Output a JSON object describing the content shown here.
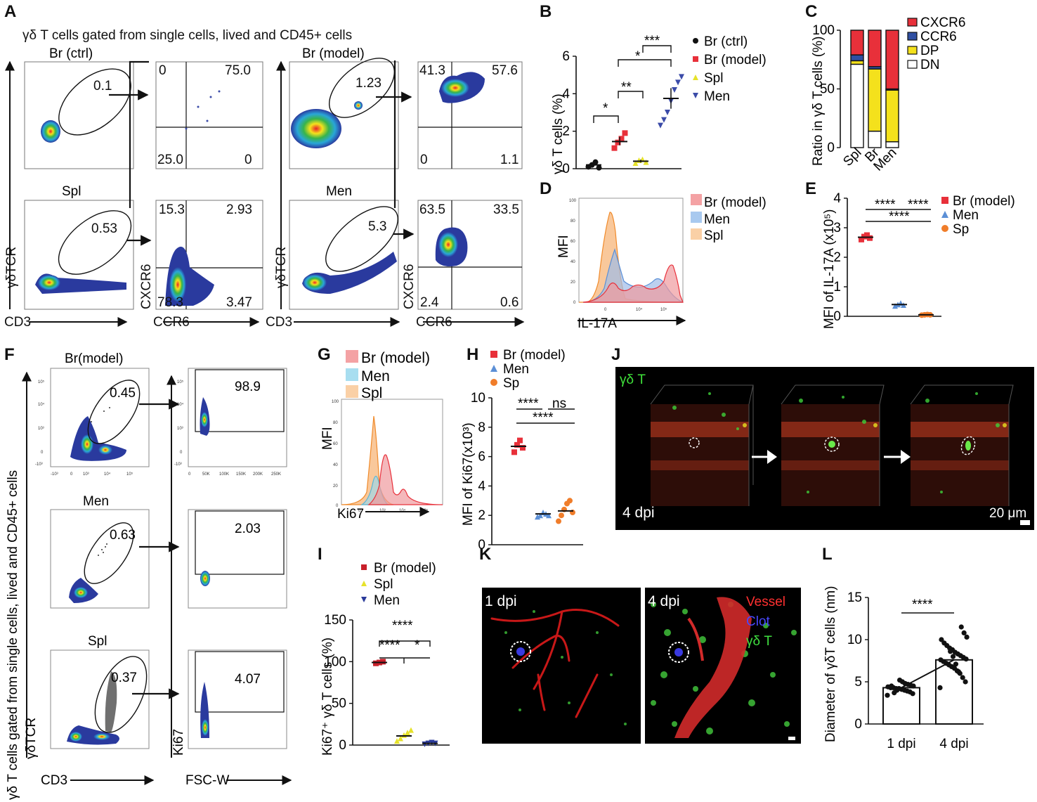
{
  "figure": {
    "panel_letters": [
      "A",
      "B",
      "C",
      "D",
      "E",
      "F",
      "G",
      "H",
      "I",
      "J",
      "K",
      "L"
    ],
    "colors": {
      "red": "#e8303a",
      "blue": "#3b4ba8",
      "yellow": "#e6e22a",
      "lightblue": "#5b8fd6",
      "orange": "#f07d2a",
      "black": "#111111"
    }
  },
  "panelA": {
    "title": "γδ T cells gated from single cells, lived and CD45+ cells",
    "plot_titles": [
      "Br (ctrl)",
      "Br (model)",
      "Spl",
      "Men"
    ],
    "gate_values": [
      "0.1",
      "1.23",
      "0.53",
      "5.3"
    ],
    "quadrants": [
      [
        "0",
        "75.0",
        "25.0",
        "0"
      ],
      [
        "41.3",
        "57.6",
        "0",
        "1.1"
      ],
      [
        "15.3",
        "2.93",
        "78.3",
        "3.47"
      ],
      [
        "63.5",
        "33.5",
        "2.4",
        "0.6"
      ]
    ],
    "ylabels": [
      "γδTCR",
      "CXCR6",
      "γδTCR",
      "CXCR6"
    ],
    "xlabels": [
      "CD3",
      "CCR6",
      "CD3",
      "CCR6"
    ]
  },
  "panelB": {
    "ylabel": "γδ T cells (%)",
    "sig": [
      "*",
      "**",
      "*",
      "***"
    ],
    "chart_data": {
      "type": "scatter",
      "ylim": [
        0,
        6
      ],
      "yticks": [
        "0",
        "2",
        "4",
        "6"
      ],
      "series": [
        {
          "name": "Br (ctrl)",
          "color": "#111111",
          "marker": "circle",
          "mean": 0.2,
          "values": [
            0.1,
            0.2,
            0.35,
            0.05
          ]
        },
        {
          "name": "Br (model)",
          "color": "#e8303a",
          "marker": "square",
          "mean": 1.45,
          "values": [
            1.1,
            1.4,
            1.6,
            1.9
          ]
        },
        {
          "name": "Spl",
          "color": "#e6e22a",
          "marker": "triangle",
          "mean": 0.4,
          "values": [
            0.3,
            0.45,
            0.5,
            0.35
          ]
        },
        {
          "name": "Men",
          "color": "#3b4ba8",
          "marker": "triangle-down",
          "mean": 3.75,
          "values": [
            2.3,
            2.6,
            3.0,
            3.6,
            4.2,
            4.6,
            4.9
          ]
        }
      ]
    }
  },
  "panelC": {
    "ylabel": "Ratio in γδ T cells (%)",
    "chart_data": {
      "type": "bar",
      "stacked": true,
      "categories": [
        "Spl",
        "Br",
        "Men"
      ],
      "ylim": [
        0,
        100
      ],
      "yticks": [
        "0",
        "50",
        "100"
      ],
      "series": [
        {
          "name": "DN",
          "color": "#ffffff",
          "values": [
            71,
            14,
            5
          ]
        },
        {
          "name": "DP",
          "color": "#f4e11c",
          "values": [
            3,
            53,
            44
          ]
        },
        {
          "name": "CCR6",
          "color": "#2f4fa2",
          "values": [
            5,
            2,
            1
          ]
        },
        {
          "name": "CXCR6",
          "color": "#e8303a",
          "values": [
            21,
            31,
            50
          ]
        }
      ]
    }
  },
  "panelD": {
    "ylabel": "MFI",
    "xlabel": "IL-17A",
    "yticks": [
      "0",
      "20",
      "40",
      "60",
      "80",
      "100"
    ],
    "xticks": [
      "0",
      "10⁴",
      "10⁵"
    ],
    "legend": [
      "Br (model)",
      "Men",
      "Spl"
    ]
  },
  "panelE": {
    "ylabel": "MFI of IL-17A (x10⁵)",
    "sig": [
      "****",
      "****",
      "****"
    ],
    "chart_data": {
      "type": "scatter",
      "ylim": [
        0,
        4
      ],
      "yticks": [
        "0",
        "1",
        "2",
        "3",
        "4"
      ],
      "series": [
        {
          "name": "Br (model)",
          "color": "#e8303a",
          "marker": "square",
          "mean": 2.68,
          "values": [
            2.6,
            2.7,
            2.75,
            2.65
          ]
        },
        {
          "name": "Men",
          "color": "#5b8fd6",
          "marker": "triangle",
          "mean": 0.4,
          "values": [
            0.35,
            0.4,
            0.45,
            0.38
          ]
        },
        {
          "name": "Sp",
          "color": "#f07d2a",
          "marker": "circle",
          "mean": 0.05,
          "values": [
            0.04,
            0.05,
            0.06,
            0.05
          ]
        }
      ]
    }
  },
  "panelF": {
    "ylabel_outer": "γδ T cells gated from single cells, lived and CD45+ cells",
    "plot_titles": [
      "Br(model)",
      "Men",
      "Spl"
    ],
    "gate_values": [
      "0.45",
      "0.63",
      "0.37"
    ],
    "ki67_values": [
      "98.9",
      "2.03",
      "4.07"
    ],
    "ylabels": [
      "γδTCR",
      "Ki67"
    ],
    "xlabels": [
      "CD3",
      "FSC-W"
    ],
    "xticks_left": [
      "-10³",
      "0",
      "10³",
      "10⁴",
      "10⁵"
    ],
    "yticks_left": [
      "10⁵",
      "10⁴",
      "10³",
      "0",
      "-10³"
    ],
    "xticks_right": [
      "0",
      "50K",
      "100K",
      "150K",
      "200K",
      "250K"
    ],
    "yticks_right": [
      "10⁵",
      "10⁴",
      "10³",
      "0",
      "-10³"
    ]
  },
  "panelG": {
    "ylabel": "MFI",
    "xlabel": "Ki67",
    "yticks": [
      "0",
      "20",
      "40",
      "60",
      "80",
      "100"
    ],
    "xticks": [
      "0",
      "10³",
      "10⁴",
      "10⁵"
    ],
    "legend": [
      "Br (model)",
      "Men",
      "Spl"
    ]
  },
  "panelH": {
    "ylabel": "MFI of Ki67(x10³)",
    "sig": [
      "****",
      "ns",
      "****"
    ],
    "chart_data": {
      "type": "scatter",
      "ylim": [
        0,
        10
      ],
      "yticks": [
        "0",
        "2",
        "4",
        "6",
        "8",
        "10"
      ],
      "series": [
        {
          "name": "Br (model)",
          "color": "#e8303a",
          "marker": "square",
          "mean": 6.7,
          "values": [
            6.3,
            6.8,
            7.1,
            6.6
          ]
        },
        {
          "name": "Men",
          "color": "#5b8fd6",
          "marker": "triangle",
          "mean": 2.1,
          "values": [
            1.9,
            2.0,
            2.2,
            2.1,
            2.0
          ]
        },
        {
          "name": "Sp",
          "color": "#f07d2a",
          "marker": "circle",
          "mean": 2.3,
          "values": [
            1.6,
            2.0,
            2.4,
            2.8,
            3.0,
            2.2
          ]
        }
      ]
    }
  },
  "panelI": {
    "ylabel": "Ki67⁺ γδ T cells (%)",
    "sig": [
      "****",
      "****",
      "*"
    ],
    "chart_data": {
      "type": "scatter",
      "ylim": [
        0,
        150
      ],
      "yticks": [
        "0",
        "50",
        "100",
        "150"
      ],
      "series": [
        {
          "name": "Br (model)",
          "color": "#c8202a",
          "marker": "square",
          "mean": 99,
          "values": [
            98,
            99,
            100
          ]
        },
        {
          "name": "Spl",
          "color": "#e6e22a",
          "marker": "triangle",
          "mean": 11,
          "values": [
            5,
            8,
            12,
            15,
            18
          ]
        },
        {
          "name": "Men",
          "color": "#2a3a9a",
          "marker": "triangle-down",
          "mean": 2,
          "values": [
            1,
            2,
            3,
            2
          ]
        }
      ]
    }
  },
  "panelJ": {
    "label_cell": "γδ T",
    "label_time": "4 dpi",
    "scale": "20 μm"
  },
  "panelK": {
    "label_left": "1 dpi",
    "label_right": "4 dpi",
    "legend": [
      "Vessel",
      "Clot",
      "γδ T"
    ]
  },
  "panelL": {
    "ylabel": "Diameter of γδT cells (nm)",
    "sig": "****",
    "chart_data": {
      "type": "bar",
      "categories": [
        "1 dpi",
        "4 dpi"
      ],
      "ylim": [
        0,
        15
      ],
      "yticks": [
        "0",
        "5",
        "10",
        "15"
      ],
      "values": [
        4.3,
        7.6
      ],
      "points": [
        [
          3.4,
          3.6,
          3.8,
          3.9,
          4.0,
          4.1,
          4.2,
          4.2,
          4.3,
          4.3,
          4.4,
          4.5,
          4.6,
          4.7,
          4.8,
          5.0,
          5.2,
          4.0,
          3.7,
          4.5
        ],
        [
          4.3,
          5.0,
          5.5,
          6.0,
          6.3,
          6.6,
          6.8,
          7.0,
          7.2,
          7.4,
          7.6,
          7.7,
          7.9,
          8.1,
          8.3,
          8.5,
          8.8,
          9.0,
          9.3,
          9.6,
          10.0,
          10.3,
          10.8,
          11.5,
          6.2,
          7.1,
          8.0,
          8.6
        ]
      ]
    }
  }
}
